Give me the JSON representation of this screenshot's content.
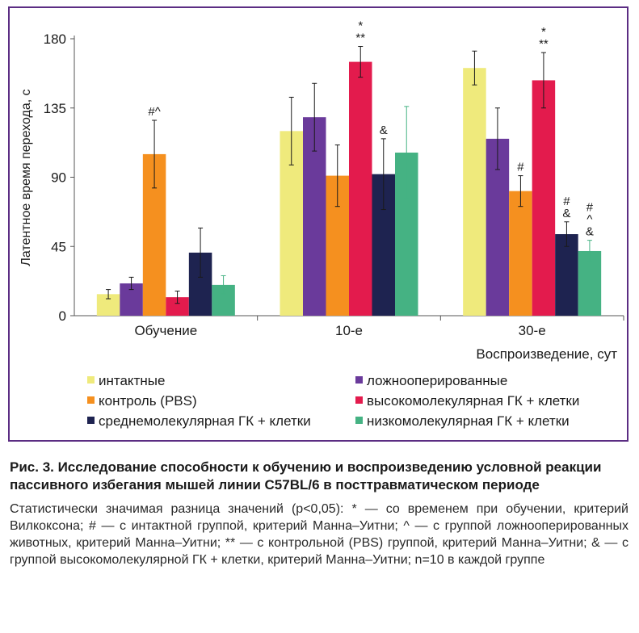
{
  "chart_data": {
    "type": "bar",
    "categories": [
      "Обучение",
      "10-е",
      "30-е"
    ],
    "xlabel": "Воспроизведение, сут",
    "ylabel": "Латентное время перехода, с",
    "ylim": [
      0,
      180
    ],
    "yticks": [
      "0",
      "45",
      "90",
      "135",
      "180"
    ],
    "series": [
      {
        "name": "интактные",
        "color": "#efea7c",
        "values": [
          14,
          120,
          161
        ],
        "errors": [
          3,
          22,
          11
        ],
        "annotations": [
          "",
          "",
          ""
        ]
      },
      {
        "name": "ложнооперированные",
        "color": "#6a3a9b",
        "values": [
          21,
          129,
          115
        ],
        "errors": [
          4,
          22,
          20
        ],
        "annotations": [
          "",
          "",
          ""
        ]
      },
      {
        "name": "контроль (PBS)",
        "color": "#f5901f",
        "values": [
          105,
          91,
          81
        ],
        "errors": [
          22,
          20,
          10
        ],
        "annotations": [
          "#^",
          "",
          "#"
        ]
      },
      {
        "name": "высокомолекулярная ГК + клетки",
        "color": "#e31b4d",
        "values": [
          12,
          165,
          153
        ],
        "errors": [
          4,
          10,
          18
        ],
        "annotations": [
          "",
          "*\n**",
          "*\n**"
        ]
      },
      {
        "name": "среднемолекулярная ГК + клетки",
        "color": "#1e2350",
        "values": [
          41,
          92,
          53
        ],
        "errors": [
          16,
          23,
          8
        ],
        "annotations": [
          "",
          "&",
          "#\n&"
        ]
      },
      {
        "name": "низкомолекулярная ГК + клетки",
        "color": "#45b283",
        "values": [
          20,
          106,
          42
        ],
        "errors": [
          6,
          30,
          7
        ],
        "annotations": [
          "",
          "",
          "#\n^\n&"
        ]
      }
    ],
    "grid": false,
    "legend_position": "bottom"
  },
  "caption": {
    "title": "Рис. 3. Исследование способности к обучению и воспроизведению условной реакции пассивного избегания мышей линии C57BL/6 в посттравматическом периоде",
    "body": "Статистически значимая разница значений (p<0,05): * — со временем при обучении, критерий Вилкоксона; # — с интактной группой, критерий Манна–Уитни; ^ — с группой ложнооперированных животных, критерий Манна–Уитни; ** — с контрольной (PBS) группой, критерий Манна–Уитни; & — с группой высокомолекулярной ГК + клетки, критерий Манна–Уитни; n=10 в каждой группе"
  }
}
